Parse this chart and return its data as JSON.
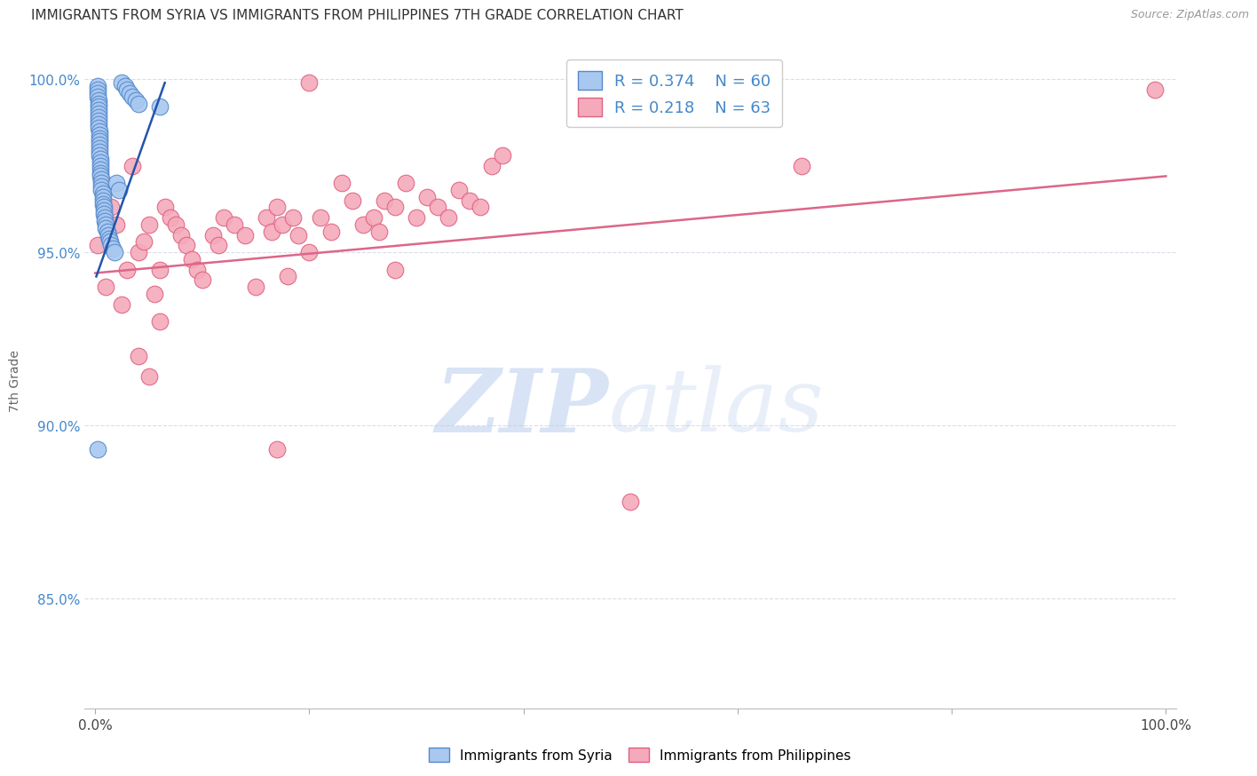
{
  "title": "IMMIGRANTS FROM SYRIA VS IMMIGRANTS FROM PHILIPPINES 7TH GRADE CORRELATION CHART",
  "source": "Source: ZipAtlas.com",
  "ylabel": "7th Grade",
  "xlim": [
    -0.01,
    1.01
  ],
  "ylim": [
    0.818,
    1.008
  ],
  "yticks": [
    0.85,
    0.9,
    0.95,
    1.0
  ],
  "ytick_labels": [
    "85.0%",
    "90.0%",
    "95.0%",
    "100.0%"
  ],
  "xticks": [
    0.0,
    0.2,
    0.4,
    0.6,
    0.8,
    1.0
  ],
  "xtick_labels": [
    "0.0%",
    "",
    "",
    "",
    "",
    "100.0%"
  ],
  "r_syria": 0.374,
  "n_syria": 60,
  "r_philippines": 0.218,
  "n_philippines": 63,
  "color_syria": "#a8c8f0",
  "color_philippines": "#f4aabb",
  "edge_color_syria": "#5588cc",
  "edge_color_philippines": "#e06080",
  "line_color_syria": "#2255aa",
  "line_color_philippines": "#dd6688",
  "background_color": "#ffffff",
  "grid_color": "#d8dde8",
  "title_color": "#333333",
  "ytick_color": "#4488cc",
  "syria_x": [
    0.002,
    0.002,
    0.002,
    0.002,
    0.003,
    0.003,
    0.003,
    0.003,
    0.003,
    0.003,
    0.003,
    0.003,
    0.003,
    0.004,
    0.004,
    0.004,
    0.004,
    0.004,
    0.004,
    0.004,
    0.004,
    0.005,
    0.005,
    0.005,
    0.005,
    0.005,
    0.005,
    0.006,
    0.006,
    0.006,
    0.006,
    0.007,
    0.007,
    0.007,
    0.007,
    0.008,
    0.008,
    0.008,
    0.009,
    0.009,
    0.01,
    0.01,
    0.011,
    0.012,
    0.013,
    0.014,
    0.015,
    0.016,
    0.018,
    0.02,
    0.022,
    0.025,
    0.028,
    0.03,
    0.032,
    0.035,
    0.038,
    0.04,
    0.06,
    0.002
  ],
  "syria_y": [
    0.998,
    0.997,
    0.996,
    0.995,
    0.994,
    0.993,
    0.992,
    0.991,
    0.99,
    0.989,
    0.988,
    0.987,
    0.986,
    0.985,
    0.984,
    0.983,
    0.982,
    0.981,
    0.98,
    0.979,
    0.978,
    0.977,
    0.976,
    0.975,
    0.974,
    0.973,
    0.972,
    0.971,
    0.97,
    0.969,
    0.968,
    0.967,
    0.966,
    0.965,
    0.964,
    0.963,
    0.962,
    0.961,
    0.96,
    0.959,
    0.958,
    0.957,
    0.956,
    0.955,
    0.954,
    0.953,
    0.952,
    0.951,
    0.95,
    0.97,
    0.968,
    0.999,
    0.998,
    0.997,
    0.996,
    0.995,
    0.994,
    0.993,
    0.992,
    0.893
  ],
  "philippines_x": [
    0.002,
    0.006,
    0.01,
    0.015,
    0.02,
    0.025,
    0.03,
    0.035,
    0.04,
    0.045,
    0.05,
    0.055,
    0.06,
    0.065,
    0.07,
    0.075,
    0.08,
    0.085,
    0.09,
    0.095,
    0.1,
    0.11,
    0.115,
    0.12,
    0.13,
    0.14,
    0.15,
    0.16,
    0.165,
    0.17,
    0.175,
    0.18,
    0.185,
    0.19,
    0.2,
    0.21,
    0.22,
    0.23,
    0.24,
    0.25,
    0.26,
    0.265,
    0.27,
    0.28,
    0.29,
    0.3,
    0.31,
    0.32,
    0.33,
    0.34,
    0.35,
    0.36,
    0.37,
    0.38,
    0.04,
    0.05,
    0.06,
    0.17,
    0.5,
    0.2,
    0.99,
    0.66,
    0.28
  ],
  "philippines_y": [
    0.952,
    0.971,
    0.94,
    0.963,
    0.958,
    0.935,
    0.945,
    0.975,
    0.95,
    0.953,
    0.958,
    0.938,
    0.945,
    0.963,
    0.96,
    0.958,
    0.955,
    0.952,
    0.948,
    0.945,
    0.942,
    0.955,
    0.952,
    0.96,
    0.958,
    0.955,
    0.94,
    0.96,
    0.956,
    0.963,
    0.958,
    0.943,
    0.96,
    0.955,
    0.95,
    0.96,
    0.956,
    0.97,
    0.965,
    0.958,
    0.96,
    0.956,
    0.965,
    0.963,
    0.97,
    0.96,
    0.966,
    0.963,
    0.96,
    0.968,
    0.965,
    0.963,
    0.975,
    0.978,
    0.92,
    0.914,
    0.93,
    0.893,
    0.878,
    0.999,
    0.997,
    0.975,
    0.945
  ]
}
